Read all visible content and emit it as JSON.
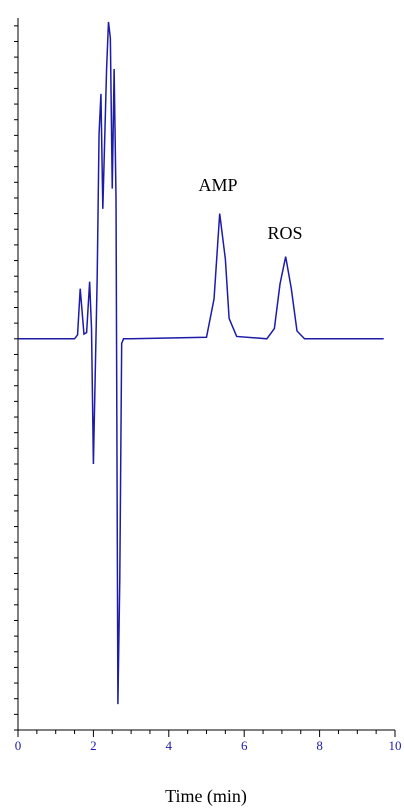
{
  "chart_data": {
    "type": "line",
    "xlabel": "Time (min)",
    "annotations": [
      "AMP",
      "ROS"
    ],
    "x": [
      0,
      1.5,
      1.58,
      1.65,
      1.75,
      1.82,
      1.9,
      1.95,
      2.0,
      2.1,
      2.15,
      2.2,
      2.25,
      2.35,
      2.4,
      2.45,
      2.5,
      2.55,
      2.6,
      2.65,
      2.7,
      2.75,
      2.8,
      3.0,
      5.0,
      5.2,
      5.35,
      5.5,
      5.6,
      5.8,
      6.6,
      6.8,
      6.95,
      7.1,
      7.25,
      7.4,
      7.6,
      9.7
    ],
    "series": [
      {
        "color": "#1c1ca8",
        "values": [
          0,
          0,
          0.5,
          6.4,
          0.6,
          0.8,
          7.3,
          1.3,
          -16,
          7.7,
          26.2,
          31.3,
          16.6,
          34.5,
          40.5,
          38.4,
          19.2,
          34.5,
          17.9,
          -46.7,
          -30.7,
          -0.6,
          0,
          0,
          0.2,
          5.1,
          16,
          10.2,
          2.6,
          0.3,
          0,
          1.3,
          7,
          10.5,
          6.4,
          1,
          0,
          0
        ]
      }
    ],
    "xlim": [
      0,
      10
    ],
    "xticks": [
      0,
      2,
      4,
      6,
      8,
      10
    ],
    "xticks_minor": [
      0.5,
      1,
      1.5,
      2.5,
      3,
      3.5,
      4.5,
      5,
      5.5,
      6.5,
      7,
      7.5,
      8.5,
      9,
      9.5
    ],
    "ylim": [
      -50,
      41
    ],
    "yticks": [
      -50,
      -48,
      -46,
      -44,
      -42,
      -40,
      -38,
      -36,
      -34,
      -32,
      -30,
      -28,
      -26,
      -24,
      -22,
      -20,
      -18,
      -16,
      -14,
      -12,
      -10,
      -8,
      -6,
      -4,
      -2,
      0,
      2,
      4,
      6,
      8,
      10,
      12,
      14,
      16,
      18,
      20,
      22,
      24,
      26,
      28,
      30,
      32,
      34,
      36,
      38,
      40
    ]
  }
}
